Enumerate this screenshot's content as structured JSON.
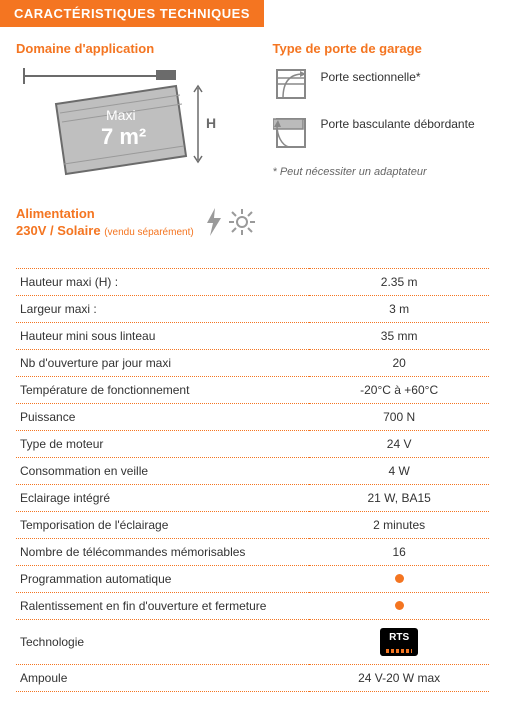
{
  "banner": "CARACTÉRISTIQUES TECHNIQUES",
  "app": {
    "heading": "Domaine d'application",
    "diagram": {
      "maxi_label": "Maxi",
      "area_label": "7 m²",
      "h_label": "H",
      "colors": {
        "fill": "#bfbfbf",
        "stroke": "#6b6b6b",
        "text": "#ffffff",
        "h_text": "#6b6b6b"
      }
    }
  },
  "door_types": {
    "heading": "Type de porte de garage",
    "items": [
      {
        "id": "sectionnelle",
        "label": "Porte sectionnelle*"
      },
      {
        "id": "basculante",
        "label": "Porte basculante débordante"
      }
    ],
    "footnote": "* Peut nécessiter un adaptateur"
  },
  "power": {
    "title": "Alimentation",
    "line2_strong": "230V / Solaire",
    "line2_sub": "(vendu séparément)",
    "icons": [
      "bolt-icon",
      "sun-icon"
    ]
  },
  "spec_table": {
    "rows": [
      {
        "label": "Hauteur maxi (H) :",
        "value": "2.35 m",
        "type": "text"
      },
      {
        "label": "Largeur maxi :",
        "value": "3 m",
        "type": "text"
      },
      {
        "label": "Hauteur mini sous linteau",
        "value": "35 mm",
        "type": "text"
      },
      {
        "label": "Nb d'ouverture par jour maxi",
        "value": "20",
        "type": "text"
      },
      {
        "label": "Température de fonctionnement",
        "value": "-20°C à +60°C",
        "type": "text"
      },
      {
        "label": "Puissance",
        "value": "700 N",
        "type": "text"
      },
      {
        "label": "Type de moteur",
        "value": "24 V",
        "type": "text"
      },
      {
        "label": "Consommation en veille",
        "value": "4 W",
        "type": "text"
      },
      {
        "label": "Eclairage intégré",
        "value": "21 W, BA15",
        "type": "text"
      },
      {
        "label": "Temporisation de l'éclairage",
        "value": "2 minutes",
        "type": "text"
      },
      {
        "label": "Nombre de télécommandes mémorisables",
        "value": "16",
        "type": "text"
      },
      {
        "label": "Programmation automatique",
        "value": "",
        "type": "dot"
      },
      {
        "label": "Ralentissement en fin d'ouverture et fermeture",
        "value": "",
        "type": "dot"
      },
      {
        "label": "Technologie",
        "value": "RTS",
        "type": "rts"
      },
      {
        "label": "Ampoule",
        "value": "24 V-20 W max",
        "type": "text"
      }
    ]
  },
  "colors": {
    "accent": "#f47521",
    "border": "#f47521"
  }
}
